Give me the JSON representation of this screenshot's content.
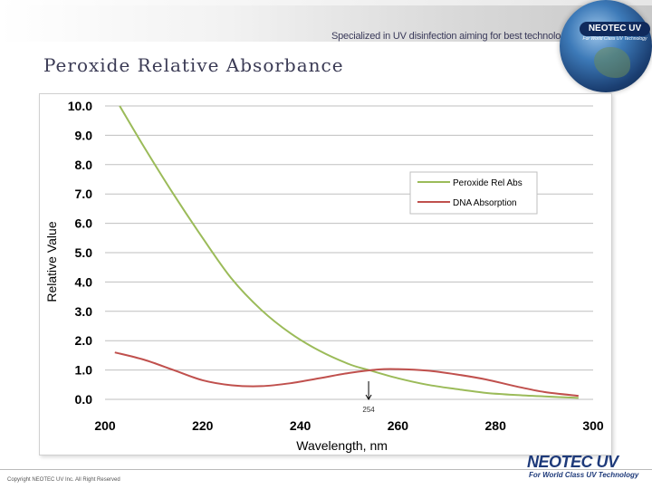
{
  "header": {
    "tagline": "Specialized in UV disinfection aiming for best technology",
    "badge": "NEOTEC UV",
    "badge_sub": "For World Class UV Technology"
  },
  "slide": {
    "title": "Peroxide Relative Absorbance"
  },
  "footer": {
    "copyright": "Copyright NEOTEC UV Inc. All Right Reserved",
    "logo": "NEOTEC UV",
    "logo_sub": "For World Class UV Technology"
  },
  "colors": {
    "peroxide": "#9bbb59",
    "dna": "#c0504d",
    "grid": "#bfbfbf"
  },
  "chart_data": {
    "type": "line",
    "title": "",
    "xlabel": "Wavelength, nm",
    "ylabel": "Relative Value",
    "xlim": [
      200,
      300
    ],
    "ylim": [
      0,
      10
    ],
    "x_ticks": [
      "200",
      "220",
      "240",
      "260",
      "280",
      "300"
    ],
    "y_ticks": [
      "0.0",
      "1.0",
      "2.0",
      "3.0",
      "4.0",
      "5.0",
      "6.0",
      "7.0",
      "8.0",
      "9.0",
      "10.0"
    ],
    "grid": true,
    "legend_position": "right",
    "series": [
      {
        "name": "Peroxide Rel Abs",
        "x": [
          203,
          208,
          214,
          220,
          226,
          232,
          238,
          244,
          250,
          254,
          260,
          266,
          272,
          278,
          284,
          290,
          297
        ],
        "y": [
          10.0,
          8.6,
          7.0,
          5.5,
          4.1,
          3.05,
          2.25,
          1.65,
          1.2,
          1.0,
          0.72,
          0.5,
          0.35,
          0.22,
          0.15,
          0.1,
          0.05
        ]
      },
      {
        "name": "DNA Absorption",
        "x": [
          202,
          208,
          214,
          220,
          226,
          232,
          238,
          244,
          250,
          256,
          260,
          266,
          272,
          278,
          284,
          290,
          297
        ],
        "y": [
          1.6,
          1.35,
          1.0,
          0.65,
          0.48,
          0.45,
          0.55,
          0.72,
          0.9,
          1.02,
          1.03,
          0.98,
          0.85,
          0.68,
          0.45,
          0.25,
          0.12
        ]
      }
    ],
    "annotations": [
      {
        "x": 254,
        "label": "254"
      }
    ]
  }
}
